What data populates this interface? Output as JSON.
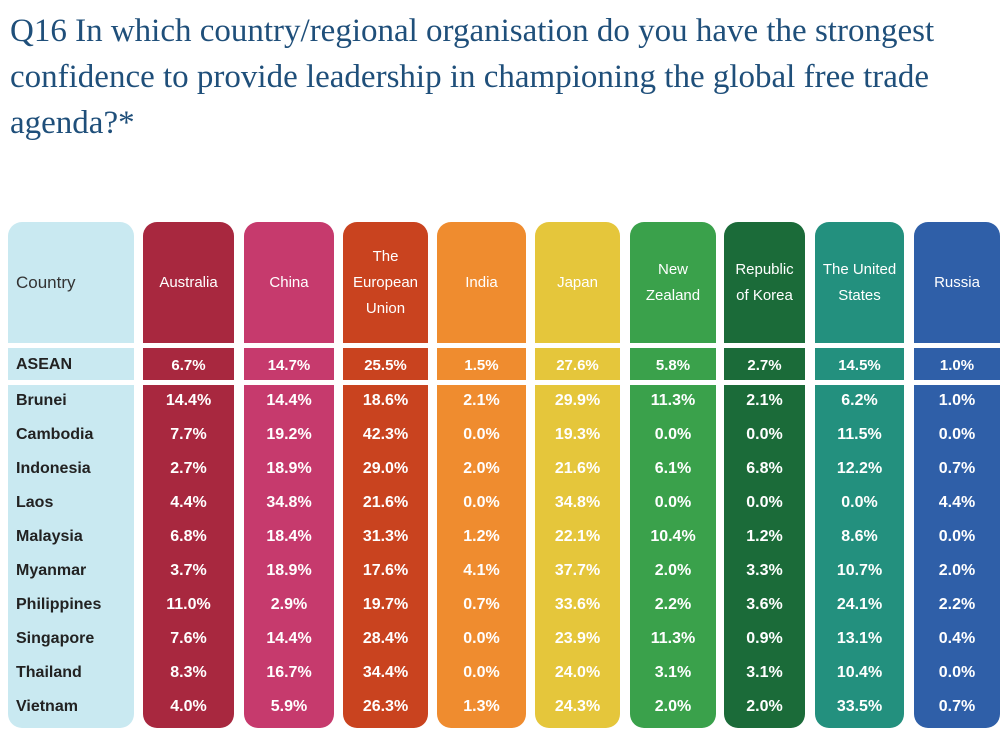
{
  "header": {
    "title": "Q16 In which country/regional organisation do you have the strongest confidence to provide leadership in championing the global free trade agenda?*"
  },
  "table": {
    "columns": [
      "Country",
      "Australia",
      "China",
      "The European Union",
      "India",
      "Japan",
      "New Zealand",
      "Republic of Korea",
      "The United States",
      "Russia"
    ],
    "rows": [
      [
        "ASEAN",
        "6.7%",
        "14.7%",
        "25.5%",
        "1.5%",
        "27.6%",
        "5.8%",
        "2.7%",
        "14.5%",
        "1.0%"
      ],
      [
        "Brunei",
        "14.4%",
        "14.4%",
        "18.6%",
        "2.1%",
        "29.9%",
        "11.3%",
        "2.1%",
        "6.2%",
        "1.0%"
      ],
      [
        "Cambodia",
        "7.7%",
        "19.2%",
        "42.3%",
        "0.0%",
        "19.3%",
        "0.0%",
        "0.0%",
        "11.5%",
        "0.0%"
      ],
      [
        "Indonesia",
        "2.7%",
        "18.9%",
        "29.0%",
        "2.0%",
        "21.6%",
        "6.1%",
        "6.8%",
        "12.2%",
        "0.7%"
      ],
      [
        "Laos",
        "4.4%",
        "34.8%",
        "21.6%",
        "0.0%",
        "34.8%",
        "0.0%",
        "0.0%",
        "0.0%",
        "4.4%"
      ],
      [
        "Malaysia",
        "6.8%",
        "18.4%",
        "31.3%",
        "1.2%",
        "22.1%",
        "10.4%",
        "1.2%",
        "8.6%",
        "0.0%"
      ],
      [
        "Myanmar",
        "3.7%",
        "18.9%",
        "17.6%",
        "4.1%",
        "37.7%",
        "2.0%",
        "3.3%",
        "10.7%",
        "2.0%"
      ],
      [
        "Philippines",
        "11.0%",
        "2.9%",
        "19.7%",
        "0.7%",
        "33.6%",
        "2.2%",
        "3.6%",
        "24.1%",
        "2.2%"
      ],
      [
        "Singapore",
        "7.6%",
        "14.4%",
        "28.4%",
        "0.0%",
        "23.9%",
        "11.3%",
        "0.9%",
        "13.1%",
        "0.4%"
      ],
      [
        "Thailand",
        "8.3%",
        "16.7%",
        "34.4%",
        "0.0%",
        "24.0%",
        "3.1%",
        "3.1%",
        "10.4%",
        "0.0%"
      ],
      [
        "Vietnam",
        "4.0%",
        "5.9%",
        "26.3%",
        "1.3%",
        "24.3%",
        "2.0%",
        "2.0%",
        "33.5%",
        "0.7%"
      ]
    ]
  }
}
